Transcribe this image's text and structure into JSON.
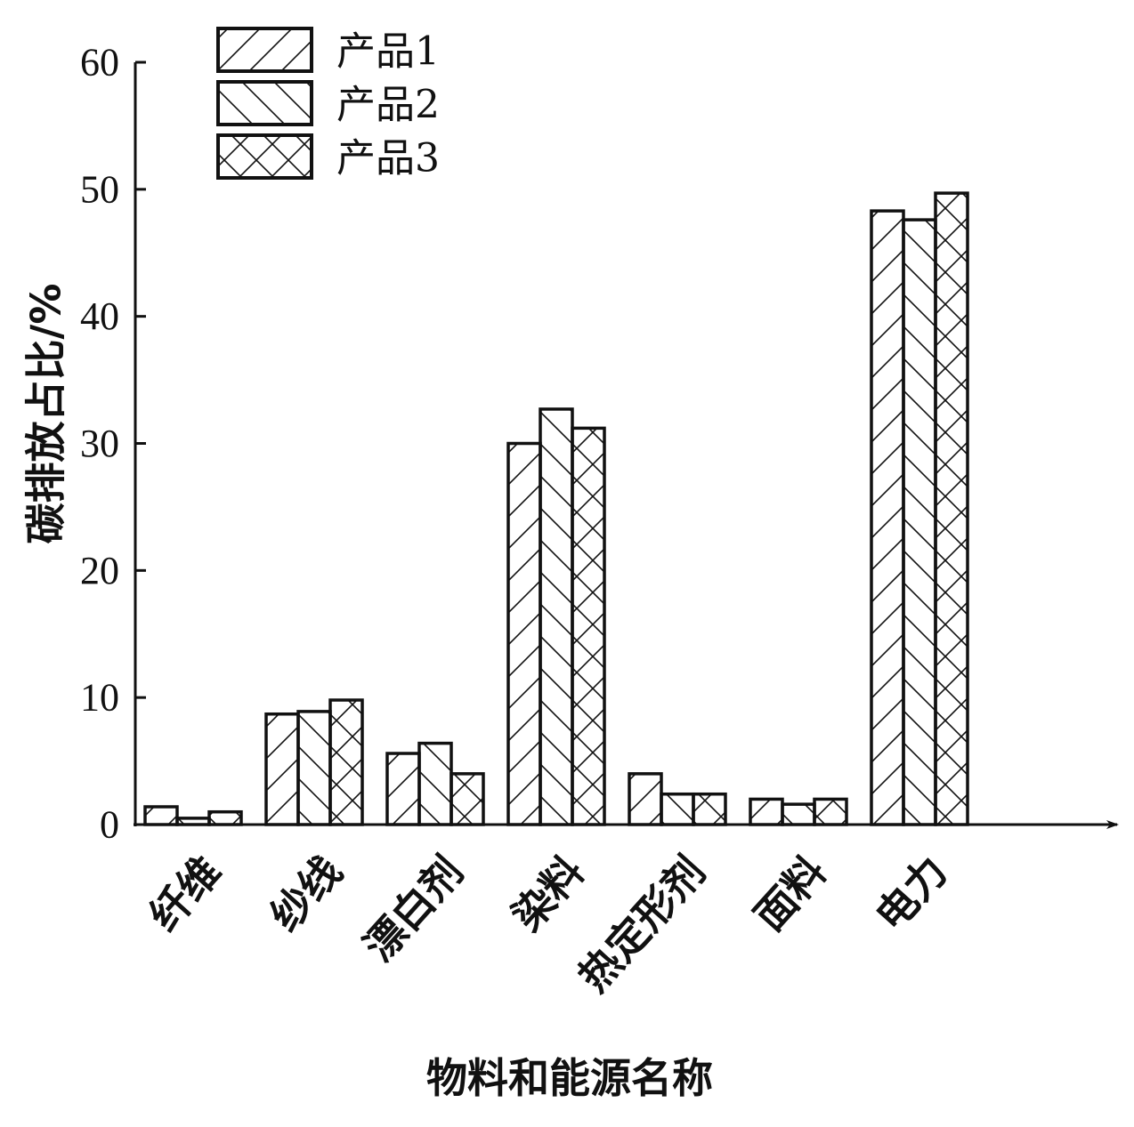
{
  "chart_data": {
    "type": "bar",
    "categories": [
      "纤维",
      "纱线",
      "漂白剂",
      "染料",
      "热定形剂",
      "面料",
      "电力"
    ],
    "series": [
      {
        "name": "产品1",
        "values": [
          1.4,
          8.7,
          5.6,
          30.0,
          4.0,
          2.0,
          48.3
        ],
        "pattern": "hatch-forward"
      },
      {
        "name": "产品2",
        "values": [
          0.5,
          8.9,
          6.4,
          32.7,
          2.4,
          1.6,
          47.6
        ],
        "pattern": "hatch-back"
      },
      {
        "name": "产品3",
        "values": [
          1.0,
          9.8,
          4.0,
          31.2,
          2.4,
          2.0,
          49.7
        ],
        "pattern": "crosshatch"
      }
    ],
    "title": "",
    "xlabel": "物料和能源名称",
    "ylabel": "碳排放占比/%",
    "ylim": [
      0,
      60
    ],
    "yticks": [
      "0",
      "10",
      "20",
      "30",
      "40",
      "50",
      "60"
    ],
    "grid": false,
    "legend_position": "top-left",
    "colors": {
      "stroke": "#111111",
      "fill": "#ffffff"
    }
  }
}
